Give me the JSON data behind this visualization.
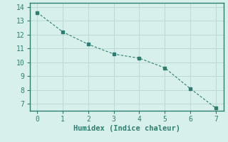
{
  "x": [
    0,
    1,
    2,
    3,
    4,
    5,
    6,
    7
  ],
  "y": [
    13.6,
    12.2,
    11.3,
    10.6,
    10.3,
    9.6,
    8.1,
    6.7
  ],
  "line_color": "#2e7d6e",
  "marker": "s",
  "marker_size": 2.5,
  "xlabel": "Humidex (Indice chaleur)",
  "xlim": [
    -0.3,
    7.3
  ],
  "ylim": [
    6.5,
    14.3
  ],
  "yticks": [
    7,
    8,
    9,
    10,
    11,
    12,
    13,
    14
  ],
  "xticks": [
    0,
    1,
    2,
    3,
    4,
    5,
    6,
    7
  ],
  "bg_color": "#d7f0ec",
  "grid_color": "#bcd9d4",
  "spine_color": "#2e7d6e",
  "font_family": "monospace",
  "xlabel_fontsize": 7.5,
  "tick_fontsize": 7
}
